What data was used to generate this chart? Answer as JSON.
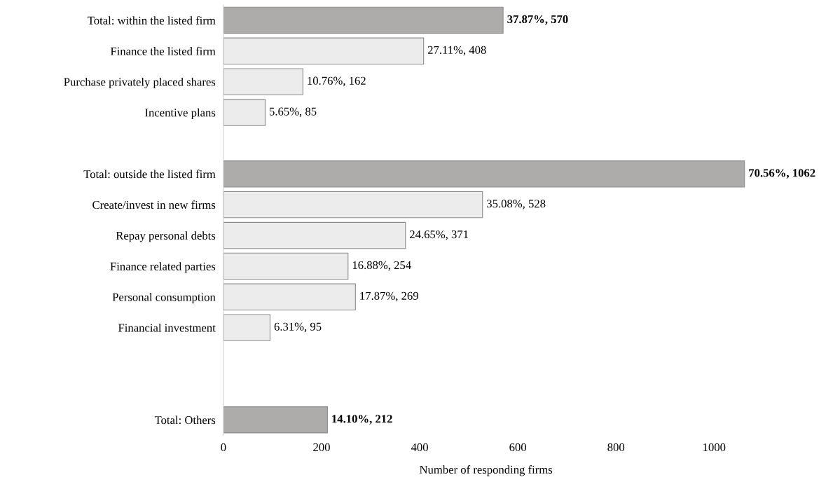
{
  "chart_data": {
    "type": "bar",
    "orientation": "horizontal",
    "categories": [
      "Total: within the listed firm",
      "Finance the listed firm",
      "Purchase privately placed shares",
      "Incentive plans",
      null,
      "Total: outside the listed firm",
      "Create/invest in new firms",
      "Repay personal debts",
      "Finance related parties",
      "Personal consumption",
      "Financial investment",
      null,
      null,
      "Total: Others"
    ],
    "values": [
      570,
      408,
      162,
      85,
      null,
      1062,
      528,
      371,
      254,
      269,
      95,
      null,
      null,
      212
    ],
    "value_labels": [
      "37.87%, 570",
      "27.11%, 408",
      "10.76%, 162",
      "5.65%, 85",
      null,
      "70.56%, 1062",
      "35.08%, 528",
      "24.65%, 371",
      "16.88%, 254",
      "17.87%, 269",
      "6.31%, 95",
      null,
      null,
      "14.10%, 212"
    ],
    "colors": [
      "#aeabab",
      "#ececec",
      "#ececec",
      "#ececec",
      null,
      "#aeabab",
      "#ececec",
      "#ececec",
      "#ececec",
      "#ececec",
      "#ececec",
      null,
      null,
      "#aeabab"
    ],
    "xlabel": "Number of responding firms",
    "xlim": [
      0,
      1070
    ],
    "xticks": [
      0,
      200,
      400,
      600,
      800,
      1000
    ],
    "grid": false
  }
}
